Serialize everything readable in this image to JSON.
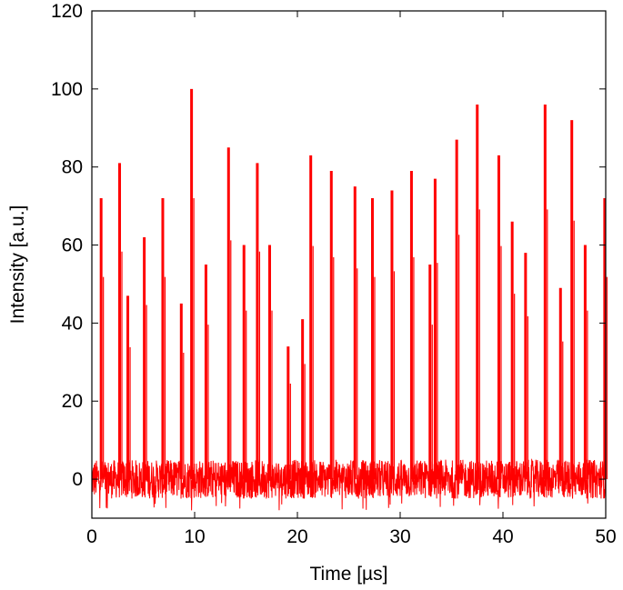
{
  "chart_data": {
    "type": "line",
    "title": "",
    "xlabel": "Time [µs]",
    "ylabel": "Intensity [a.u.]",
    "xlim": [
      0,
      50
    ],
    "ylim": [
      -10,
      120
    ],
    "xticks": [
      0,
      10,
      20,
      30,
      40,
      50
    ],
    "yticks": [
      0,
      20,
      40,
      60,
      80,
      100,
      120
    ],
    "grid": false,
    "series_color": "#ff0000",
    "baseline_noise": {
      "low": -5,
      "high": 5
    },
    "peaks": [
      {
        "t": 0.9,
        "intensity": 72
      },
      {
        "t": 2.7,
        "intensity": 81
      },
      {
        "t": 3.5,
        "intensity": 47
      },
      {
        "t": 5.1,
        "intensity": 62
      },
      {
        "t": 6.9,
        "intensity": 72
      },
      {
        "t": 8.7,
        "intensity": 45
      },
      {
        "t": 9.7,
        "intensity": 100
      },
      {
        "t": 11.1,
        "intensity": 55
      },
      {
        "t": 13.3,
        "intensity": 85
      },
      {
        "t": 14.8,
        "intensity": 60
      },
      {
        "t": 16.1,
        "intensity": 81
      },
      {
        "t": 17.3,
        "intensity": 60
      },
      {
        "t": 19.1,
        "intensity": 34
      },
      {
        "t": 20.5,
        "intensity": 41
      },
      {
        "t": 21.3,
        "intensity": 83
      },
      {
        "t": 23.3,
        "intensity": 79
      },
      {
        "t": 25.6,
        "intensity": 75
      },
      {
        "t": 27.3,
        "intensity": 72
      },
      {
        "t": 29.2,
        "intensity": 74
      },
      {
        "t": 31.1,
        "intensity": 79
      },
      {
        "t": 32.9,
        "intensity": 55
      },
      {
        "t": 33.4,
        "intensity": 77
      },
      {
        "t": 35.5,
        "intensity": 87
      },
      {
        "t": 37.5,
        "intensity": 96
      },
      {
        "t": 39.6,
        "intensity": 83
      },
      {
        "t": 40.9,
        "intensity": 66
      },
      {
        "t": 42.2,
        "intensity": 58
      },
      {
        "t": 44.1,
        "intensity": 96
      },
      {
        "t": 45.6,
        "intensity": 49
      },
      {
        "t": 46.7,
        "intensity": 92
      },
      {
        "t": 48.0,
        "intensity": 60
      },
      {
        "t": 49.9,
        "intensity": 72
      }
    ]
  }
}
